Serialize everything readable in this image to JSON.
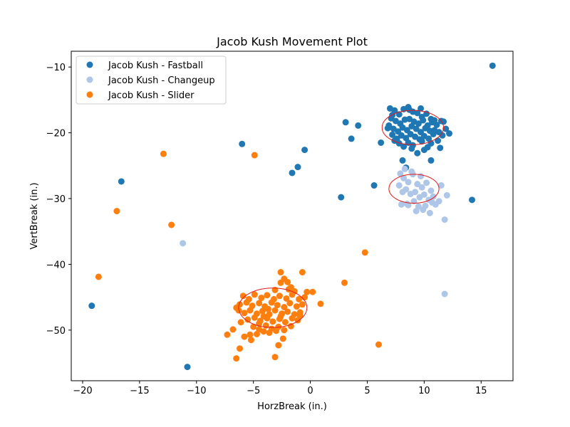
{
  "chart_data": {
    "type": "scatter",
    "title": "Jacob Kush Movement Plot",
    "xlabel": "HorzBreak (in.)",
    "ylabel": "VertBreak (in.)",
    "xlim": [
      -21,
      17.8
    ],
    "ylim": [
      -57.7,
      -7.6
    ],
    "xticks": [
      -20,
      -15,
      -10,
      -5,
      0,
      5,
      10,
      15
    ],
    "xtick_labels": [
      "−20",
      "−15",
      "−10",
      "−5",
      "0",
      "5",
      "10",
      "15"
    ],
    "yticks": [
      -10,
      -20,
      -30,
      -40,
      -50
    ],
    "ytick_labels": [
      "−10",
      "−20",
      "−30",
      "−40",
      "−50"
    ],
    "grid": false,
    "legend_position": "top-left",
    "series": [
      {
        "name": "Jacob Kush - Fastball",
        "color": "#1f77b4",
        "ellipse": {
          "cx": 9.0,
          "cy": -19.2,
          "rx": 2.7,
          "ry": 2.6
        },
        "points": [
          [
            16.0,
            -9.8
          ],
          [
            -16.6,
            -27.4
          ],
          [
            -19.2,
            -46.3
          ],
          [
            -10.8,
            -55.6
          ],
          [
            -6.0,
            -21.7
          ],
          [
            -1.6,
            -26.1
          ],
          [
            -1.1,
            -25.2
          ],
          [
            -0.5,
            -22.6
          ],
          [
            2.7,
            -29.8
          ],
          [
            3.1,
            -18.4
          ],
          [
            3.6,
            -20.9
          ],
          [
            4.2,
            -18.9
          ],
          [
            5.6,
            -28.0
          ],
          [
            6.2,
            -21.5
          ],
          [
            14.2,
            -30.2
          ],
          [
            7.0,
            -16.3
          ],
          [
            7.4,
            -16.6
          ],
          [
            7.8,
            -17.2
          ],
          [
            8.2,
            -16.4
          ],
          [
            8.6,
            -16.1
          ],
          [
            9.0,
            -16.8
          ],
          [
            9.4,
            -17.0
          ],
          [
            9.8,
            -17.6
          ],
          [
            10.2,
            -17.1
          ],
          [
            10.6,
            -17.9
          ],
          [
            7.1,
            -17.8
          ],
          [
            7.5,
            -18.2
          ],
          [
            7.9,
            -18.6
          ],
          [
            8.3,
            -18.0
          ],
          [
            8.7,
            -17.9
          ],
          [
            9.1,
            -18.3
          ],
          [
            9.5,
            -18.6
          ],
          [
            9.9,
            -18.1
          ],
          [
            10.3,
            -18.9
          ],
          [
            10.7,
            -18.4
          ],
          [
            11.1,
            -18.8
          ],
          [
            11.5,
            -18.2
          ],
          [
            6.9,
            -18.9
          ],
          [
            7.3,
            -19.4
          ],
          [
            7.7,
            -19.8
          ],
          [
            8.1,
            -19.2
          ],
          [
            8.5,
            -19.6
          ],
          [
            8.9,
            -19.0
          ],
          [
            9.3,
            -19.4
          ],
          [
            9.7,
            -19.9
          ],
          [
            10.1,
            -19.3
          ],
          [
            10.5,
            -19.7
          ],
          [
            10.9,
            -19.6
          ],
          [
            11.3,
            -19.9
          ],
          [
            7.2,
            -20.3
          ],
          [
            7.6,
            -20.9
          ],
          [
            8.0,
            -20.4
          ],
          [
            8.4,
            -20.8
          ],
          [
            8.8,
            -20.2
          ],
          [
            9.2,
            -20.6
          ],
          [
            9.6,
            -21.0
          ],
          [
            10.0,
            -20.5
          ],
          [
            10.4,
            -20.9
          ],
          [
            10.8,
            -20.2
          ],
          [
            11.6,
            -20.4
          ],
          [
            12.2,
            -20.1
          ],
          [
            7.4,
            -21.2
          ],
          [
            8.6,
            -21.5
          ],
          [
            9.0,
            -21.9
          ],
          [
            9.8,
            -21.3
          ],
          [
            10.6,
            -21.6
          ],
          [
            7.8,
            -21.6
          ],
          [
            8.2,
            -22.1
          ],
          [
            8.9,
            -22.4
          ],
          [
            10.0,
            -22.6
          ],
          [
            10.3,
            -22.2
          ],
          [
            11.4,
            -22.3
          ],
          [
            9.4,
            -23.1
          ],
          [
            8.1,
            -24.2
          ],
          [
            10.6,
            -24.2
          ],
          [
            8.4,
            -25.3
          ],
          [
            11.7,
            -18.3
          ],
          [
            11.2,
            -21.2
          ],
          [
            6.8,
            -19.3
          ],
          [
            8.7,
            -16.5
          ],
          [
            9.7,
            -16.3
          ],
          [
            7.2,
            -17.3
          ],
          [
            10.9,
            -18.1
          ],
          [
            11.9,
            -19.4
          ]
        ]
      },
      {
        "name": "Jacob Kush - Changeup",
        "color": "#aec7e8",
        "ellipse": {
          "cx": 9.1,
          "cy": -28.5,
          "rx": 2.2,
          "ry": 2.2
        },
        "points": [
          [
            -11.2,
            -36.8
          ],
          [
            11.8,
            -33.2
          ],
          [
            11.8,
            -44.5
          ],
          [
            12.0,
            -29.5
          ],
          [
            7.8,
            -28.0
          ],
          [
            8.2,
            -26.9
          ],
          [
            8.6,
            -27.5
          ],
          [
            9.0,
            -26.3
          ],
          [
            9.4,
            -27.8
          ],
          [
            9.8,
            -28.3
          ],
          [
            10.2,
            -27.6
          ],
          [
            10.6,
            -28.8
          ],
          [
            8.4,
            -28.6
          ],
          [
            8.8,
            -29.3
          ],
          [
            9.2,
            -29.0
          ],
          [
            9.6,
            -29.8
          ],
          [
            10.0,
            -29.4
          ],
          [
            10.4,
            -30.2
          ],
          [
            10.8,
            -29.7
          ],
          [
            8.5,
            -30.8
          ],
          [
            9.1,
            -30.4
          ],
          [
            9.5,
            -31.2
          ],
          [
            10.1,
            -31.1
          ],
          [
            10.7,
            -30.6
          ],
          [
            8.0,
            -30.9
          ],
          [
            8.6,
            -31.0
          ],
          [
            9.3,
            -31.9
          ],
          [
            9.9,
            -31.7
          ],
          [
            10.5,
            -32.2
          ],
          [
            11.3,
            -30.4
          ],
          [
            11.5,
            -28.0
          ],
          [
            8.9,
            -25.9
          ],
          [
            8.3,
            -25.5
          ],
          [
            9.7,
            -26.6
          ],
          [
            7.9,
            -26.2
          ],
          [
            11.0,
            -30.9
          ],
          [
            8.1,
            -29.0
          ]
        ]
      },
      {
        "name": "Jacob Kush - Slider",
        "color": "#ff7f0e",
        "ellipse": {
          "cx": -3.3,
          "cy": -46.6,
          "rx": 3.0,
          "ry": 3.0
        },
        "points": [
          [
            -12.9,
            -23.2
          ],
          [
            -4.9,
            -23.4
          ],
          [
            -12.2,
            -34.0
          ],
          [
            -17.0,
            -31.9
          ],
          [
            -18.6,
            -41.9
          ],
          [
            4.8,
            -38.2
          ],
          [
            3.0,
            -42.8
          ],
          [
            6.0,
            -52.2
          ],
          [
            -3.1,
            -54.1
          ],
          [
            -6.5,
            -54.3
          ],
          [
            -6.2,
            -52.8
          ],
          [
            -2.8,
            -52.3
          ],
          [
            -7.3,
            -50.7
          ],
          [
            -6.8,
            -49.9
          ],
          [
            0.9,
            -46.0
          ],
          [
            0.2,
            -44.2
          ],
          [
            -0.7,
            -41.2
          ],
          [
            -2.6,
            -41.2
          ],
          [
            -2.3,
            -42.2
          ],
          [
            -2.6,
            -42.8
          ],
          [
            -1.7,
            -43.5
          ],
          [
            -2.0,
            -42.7
          ],
          [
            -5.9,
            -44.8
          ],
          [
            -5.4,
            -45.3
          ],
          [
            -4.9,
            -44.6
          ],
          [
            -4.3,
            -45.1
          ],
          [
            -3.8,
            -44.7
          ],
          [
            -3.2,
            -45.3
          ],
          [
            -2.7,
            -44.8
          ],
          [
            -2.1,
            -45.2
          ],
          [
            -1.6,
            -44.6
          ],
          [
            -1.0,
            -45.3
          ],
          [
            -0.5,
            -45.0
          ],
          [
            -6.2,
            -46.1
          ],
          [
            -5.6,
            -45.8
          ],
          [
            -5.1,
            -46.3
          ],
          [
            -4.5,
            -45.9
          ],
          [
            -4.0,
            -46.4
          ],
          [
            -3.4,
            -45.8
          ],
          [
            -2.9,
            -46.2
          ],
          [
            -2.3,
            -46.5
          ],
          [
            -1.8,
            -45.9
          ],
          [
            -1.2,
            -46.4
          ],
          [
            -0.7,
            -46.1
          ],
          [
            -5.8,
            -47.4
          ],
          [
            -5.3,
            -47.0
          ],
          [
            -4.7,
            -47.5
          ],
          [
            -4.2,
            -47.1
          ],
          [
            -3.6,
            -47.6
          ],
          [
            -3.1,
            -47.0
          ],
          [
            -2.5,
            -47.5
          ],
          [
            -2.0,
            -47.2
          ],
          [
            -1.4,
            -47.6
          ],
          [
            -0.9,
            -47.3
          ],
          [
            -5.5,
            -48.4
          ],
          [
            -4.9,
            -48.1
          ],
          [
            -4.4,
            -48.6
          ],
          [
            -3.8,
            -48.2
          ],
          [
            -3.3,
            -48.7
          ],
          [
            -2.7,
            -48.3
          ],
          [
            -2.2,
            -48.8
          ],
          [
            -1.6,
            -48.2
          ],
          [
            -1.1,
            -48.5
          ],
          [
            -5.0,
            -49.5
          ],
          [
            -4.5,
            -49.9
          ],
          [
            -3.9,
            -49.3
          ],
          [
            -3.4,
            -49.8
          ],
          [
            -2.8,
            -49.5
          ],
          [
            -2.3,
            -50.0
          ],
          [
            -1.7,
            -49.4
          ],
          [
            -4.7,
            -50.6
          ],
          [
            -4.1,
            -50.2
          ],
          [
            -3.6,
            -50.4
          ],
          [
            -3.0,
            -50.1
          ],
          [
            -6.5,
            -46.6
          ],
          [
            -6.3,
            -47.0
          ],
          [
            -1.4,
            -44.1
          ],
          [
            -1.9,
            -43.8
          ],
          [
            -3.1,
            -43.9
          ],
          [
            -2.4,
            -51.3
          ],
          [
            -5.8,
            -51.0
          ],
          [
            -5.3,
            -50.7
          ],
          [
            -4.5,
            -49.0
          ],
          [
            -0.9,
            -47.8
          ],
          [
            -6.1,
            -48.8
          ],
          [
            -3.7,
            -46.8
          ],
          [
            -2.6,
            -47.9
          ],
          [
            -4.1,
            -47.9
          ],
          [
            -0.3,
            -44.2
          ],
          [
            -5.2,
            -51.5
          ]
        ]
      }
    ]
  }
}
